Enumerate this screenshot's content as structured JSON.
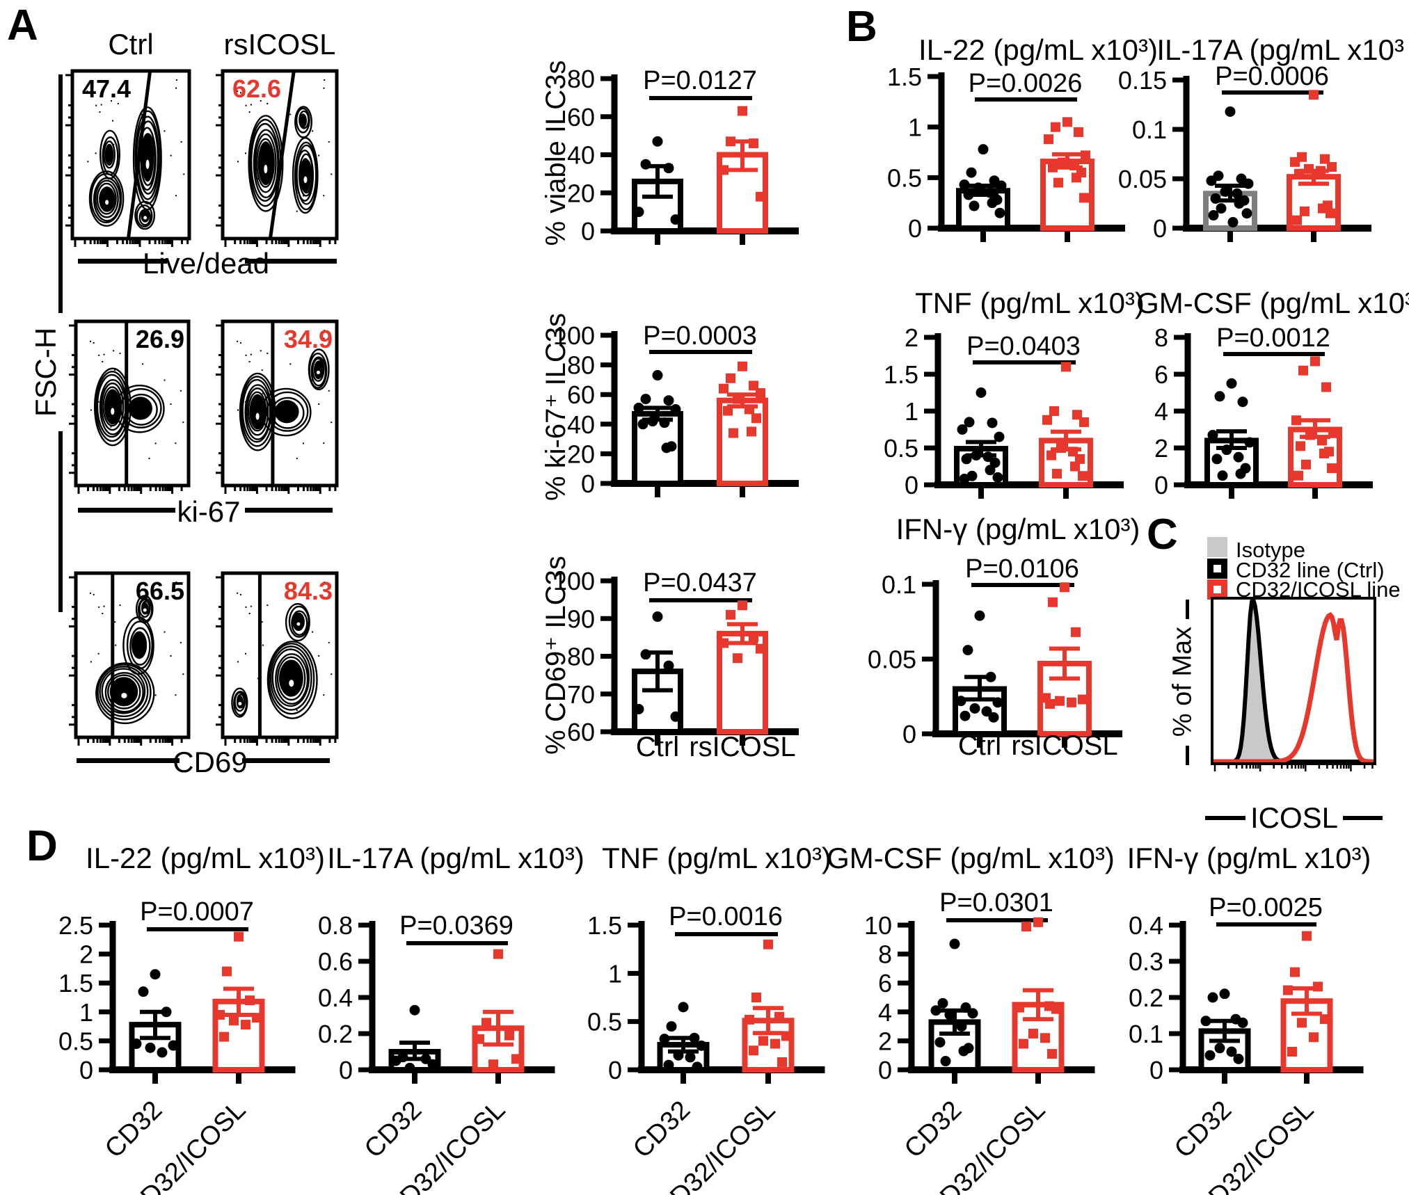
{
  "panels": {
    "a": "A",
    "b": "B",
    "c": "C",
    "d": "D"
  },
  "colors": {
    "accent_red": "#e8372c",
    "gray_bar": "#7f7f7f",
    "isotype_fill": "#c9c9c9",
    "black": "#000000"
  },
  "panel_a": {
    "col_titles": [
      "Ctrl",
      "rsICOSL"
    ],
    "y_axis_label": "FSC-H",
    "rows": [
      {
        "x_axis_label": "Live/dead",
        "ctrl_gate": "47.4",
        "treat_gate": "62.6"
      },
      {
        "x_axis_label": "ki-67",
        "ctrl_gate": "26.9",
        "treat_gate": "34.9"
      },
      {
        "x_axis_label": "CD69",
        "ctrl_gate": "66.5",
        "treat_gate": "84.3"
      }
    ]
  },
  "panel_c": {
    "y_axis_label": "% of Max",
    "x_axis_label": "ICOSL",
    "legend": [
      {
        "label": "Isotype",
        "swatch": "gray-filled"
      },
      {
        "label": "CD32 line (Ctrl)",
        "swatch": "black-open"
      },
      {
        "label": "CD32/ICOSL line",
        "swatch": "red-open"
      }
    ]
  },
  "chart_data": [
    {
      "id": "a1",
      "type": "bar",
      "title": "",
      "ylabel": "% viable ILC3s",
      "p_label": "P=0.0127",
      "ylim": [
        0,
        80
      ],
      "yticks": [
        0,
        20,
        40,
        60,
        80
      ],
      "ytick_labels": [
        "0",
        "20",
        "40",
        "60",
        "80"
      ],
      "categories": [
        "Ctrl",
        "rsICOSL"
      ],
      "show_x_labels": false,
      "rotate_x_labels": false,
      "series": [
        {
          "name": "Ctrl",
          "color": "black",
          "marker": "circle",
          "mean": 26,
          "err": [
            18,
            34
          ],
          "points": [
            47,
            35,
            33,
            10,
            6
          ]
        },
        {
          "name": "rsICOSL",
          "color": "red",
          "marker": "square",
          "mean": 40,
          "err": [
            32,
            47
          ],
          "points": [
            63,
            47,
            46,
            32,
            18
          ]
        }
      ]
    },
    {
      "id": "a2",
      "type": "bar",
      "title": "",
      "ylabel": "% ki-67⁺ ILC3s",
      "p_label": "P=0.0003",
      "ylim": [
        0,
        100
      ],
      "yticks": [
        0,
        20,
        40,
        60,
        80,
        100
      ],
      "ytick_labels": [
        "0",
        "20",
        "40",
        "60",
        "80",
        "100"
      ],
      "categories": [
        "Ctrl",
        "rsICOSL"
      ],
      "show_x_labels": false,
      "rotate_x_labels": false,
      "series": [
        {
          "name": "Ctrl",
          "color": "black",
          "marker": "circle",
          "mean": 47,
          "err": [
            43,
            51
          ],
          "points": [
            73,
            57,
            56,
            51,
            50,
            42,
            41,
            40,
            25,
            24
          ]
        },
        {
          "name": "rsICOSL",
          "color": "red",
          "marker": "square",
          "mean": 56,
          "err": [
            52,
            60
          ],
          "points": [
            79,
            71,
            66,
            64,
            61,
            57,
            50,
            49,
            44,
            35,
            34
          ]
        }
      ]
    },
    {
      "id": "a3",
      "type": "bar",
      "title": "",
      "ylabel": "% CD69⁺ ILC3s",
      "p_label": "P=0.0437",
      "ylim": [
        60,
        100
      ],
      "yticks": [
        60,
        70,
        80,
        90,
        100
      ],
      "ytick_labels": [
        "60",
        "70",
        "80",
        "90",
        "100"
      ],
      "categories": [
        "Ctrl",
        "rsICOSL"
      ],
      "show_x_labels": true,
      "rotate_x_labels": false,
      "series": [
        {
          "name": "Ctrl",
          "color": "black",
          "marker": "circle",
          "mean": 76,
          "err": [
            71,
            81
          ],
          "points": [
            90.5,
            80.5,
            77.5,
            66,
            64
          ]
        },
        {
          "name": "rsICOSL",
          "color": "red",
          "marker": "square",
          "mean": 86,
          "err": [
            83.5,
            88.5
          ],
          "points": [
            93.5,
            91,
            85,
            83.5,
            82,
            79.5
          ]
        }
      ]
    },
    {
      "id": "b1",
      "type": "bar",
      "title": "IL-22 (pg/mL x10³)",
      "ylabel": "",
      "p_label": "P=0.0026",
      "ylim": [
        0,
        1.5
      ],
      "yticks": [
        0,
        0.5,
        1,
        1.5
      ],
      "ytick_labels": [
        "0",
        "0.5",
        "1",
        "1.5"
      ],
      "categories": [
        "Ctrl",
        "rsICOSL"
      ],
      "show_x_labels": false,
      "rotate_x_labels": false,
      "series": [
        {
          "name": "Ctrl",
          "color": "black",
          "marker": "circle",
          "mean": 0.37,
          "err": [
            0.33,
            0.42
          ],
          "points": [
            0.78,
            0.55,
            0.47,
            0.43,
            0.42,
            0.4,
            0.35,
            0.33,
            0.28,
            0.25,
            0.22,
            0.15
          ]
        },
        {
          "name": "rsICOSL",
          "color": "red",
          "marker": "square",
          "mean": 0.66,
          "err": [
            0.6,
            0.73
          ],
          "points": [
            1.05,
            1.0,
            0.95,
            0.88,
            0.72,
            0.65,
            0.62,
            0.6,
            0.55,
            0.5,
            0.45,
            0.3
          ]
        }
      ]
    },
    {
      "id": "b2",
      "type": "bar",
      "title": "IL-17A (pg/mL x10³ )",
      "ylabel": "",
      "p_label": "P=0.0006",
      "ylim": [
        0,
        0.15
      ],
      "yticks": [
        0,
        0.05,
        0.1,
        0.15
      ],
      "ytick_labels": [
        "0",
        "0.05",
        "0.1",
        "0.15"
      ],
      "categories": [
        "Ctrl",
        "rsICOSL"
      ],
      "show_x_labels": false,
      "rotate_x_labels": false,
      "series": [
        {
          "name": "Ctrl",
          "color": "gray",
          "marker": "circle",
          "mean": 0.035,
          "err": [
            0.028,
            0.043
          ],
          "points": [
            0.118,
            0.053,
            0.05,
            0.048,
            0.045,
            0.037,
            0.035,
            0.03,
            0.028,
            0.025,
            0.02,
            0.015,
            0.013,
            0.006
          ]
        },
        {
          "name": "rsICOSL",
          "color": "red",
          "marker": "square",
          "mean": 0.052,
          "err": [
            0.045,
            0.058
          ],
          "points": [
            0.135,
            0.072,
            0.07,
            0.067,
            0.062,
            0.06,
            0.058,
            0.055,
            0.023,
            0.02,
            0.017,
            0.015,
            0.008
          ]
        }
      ]
    },
    {
      "id": "b3",
      "type": "bar",
      "title": "TNF (pg/mL x10³)",
      "ylabel": "",
      "p_label": "P=0.0403",
      "ylim": [
        0,
        2
      ],
      "yticks": [
        0,
        0.5,
        1,
        1.5,
        2
      ],
      "ytick_labels": [
        "0",
        "0.5",
        "1",
        "1.5",
        "2"
      ],
      "categories": [
        "Ctrl",
        "rsICOSL"
      ],
      "show_x_labels": false,
      "rotate_x_labels": false,
      "series": [
        {
          "name": "Ctrl",
          "color": "black",
          "marker": "circle",
          "mean": 0.49,
          "err": [
            0.4,
            0.58
          ],
          "points": [
            1.25,
            0.85,
            0.84,
            0.75,
            0.65,
            0.4,
            0.38,
            0.35,
            0.3,
            0.2,
            0.12,
            0.1,
            0.08
          ]
        },
        {
          "name": "rsICOSL",
          "color": "red",
          "marker": "square",
          "mean": 0.6,
          "err": [
            0.48,
            0.72
          ],
          "points": [
            1.6,
            1.0,
            0.95,
            0.88,
            0.85,
            0.5,
            0.45,
            0.4,
            0.35,
            0.25,
            0.15,
            0.12
          ]
        }
      ]
    },
    {
      "id": "b4",
      "type": "bar",
      "title": "GM-CSF (pg/mL x10³)",
      "ylabel": "",
      "p_label": "P=0.0012",
      "ylim": [
        0,
        8
      ],
      "yticks": [
        0,
        2,
        4,
        6,
        8
      ],
      "ytick_labels": [
        "0",
        "2",
        "4",
        "6",
        "8"
      ],
      "categories": [
        "Ctrl",
        "rsICOSL"
      ],
      "show_x_labels": false,
      "rotate_x_labels": false,
      "series": [
        {
          "name": "Ctrl",
          "color": "black",
          "marker": "circle",
          "mean": 2.4,
          "err": [
            2.0,
            2.9
          ],
          "points": [
            5.5,
            4.8,
            4.5,
            2.7,
            2.3,
            1.9,
            1.5,
            1.4,
            0.9,
            0.6,
            0.5
          ]
        },
        {
          "name": "rsICOSL",
          "color": "red",
          "marker": "square",
          "mean": 3.0,
          "err": [
            2.6,
            3.5
          ],
          "points": [
            6.7,
            6.2,
            5.3,
            3.5,
            2.8,
            2.7,
            2.4,
            2.1,
            1.8,
            1.7,
            1.1,
            0.9,
            0.5
          ]
        }
      ]
    },
    {
      "id": "b5",
      "type": "bar",
      "title": "IFN-γ (pg/mL x10³)",
      "ylabel": "",
      "p_label": "P=0.0106",
      "ylim": [
        0,
        0.1
      ],
      "yticks": [
        0,
        0.05,
        0.1
      ],
      "ytick_labels": [
        "0",
        "0.05",
        "0.1"
      ],
      "categories": [
        "Ctrl",
        "rsICOSL"
      ],
      "show_x_labels": true,
      "rotate_x_labels": false,
      "series": [
        {
          "name": "Ctrl",
          "color": "black",
          "marker": "circle",
          "mean": 0.03,
          "err": [
            0.023,
            0.038
          ],
          "points": [
            0.079,
            0.056,
            0.038,
            0.022,
            0.021,
            0.017,
            0.015,
            0.012,
            0.011
          ]
        },
        {
          "name": "rsICOSL",
          "color": "red",
          "marker": "square",
          "mean": 0.047,
          "err": [
            0.037,
            0.057
          ],
          "points": [
            0.098,
            0.088,
            0.068,
            0.024,
            0.023,
            0.022,
            0.021,
            0.02
          ]
        }
      ]
    },
    {
      "id": "d1",
      "type": "bar",
      "title": "IL-22 (pg/mL x10³)",
      "ylabel": "",
      "p_label": "P=0.0007",
      "ylim": [
        0,
        2.5
      ],
      "yticks": [
        0,
        0.5,
        1,
        1.5,
        2,
        2.5
      ],
      "ytick_labels": [
        "0",
        "0.5",
        "1",
        "1.5",
        "2",
        "2.5"
      ],
      "categories": [
        "CD32",
        "CD32/ICOSL"
      ],
      "show_x_labels": true,
      "rotate_x_labels": true,
      "series": [
        {
          "name": "CD32",
          "color": "black",
          "marker": "circle",
          "mean": 0.78,
          "err": [
            0.55,
            1.0
          ],
          "points": [
            1.65,
            1.35,
            1.0,
            0.45,
            0.42,
            0.38,
            0.3
          ]
        },
        {
          "name": "CD32/ICOSL",
          "color": "red",
          "marker": "square",
          "mean": 1.18,
          "err": [
            0.95,
            1.4
          ],
          "points": [
            2.3,
            1.7,
            1.2,
            0.95,
            0.9,
            0.85,
            0.78,
            0.57
          ]
        }
      ]
    },
    {
      "id": "d2",
      "type": "bar",
      "title": "IL-17A (pg/mL x10³)",
      "ylabel": "",
      "p_label": "P=0.0369",
      "ylim": [
        0,
        0.8
      ],
      "yticks": [
        0,
        0.2,
        0.4,
        0.6,
        0.8
      ],
      "ytick_labels": [
        "0",
        "0.2",
        "0.4",
        "0.6",
        "0.8"
      ],
      "categories": [
        "CD32",
        "CD32/ICOSL"
      ],
      "show_x_labels": true,
      "rotate_x_labels": true,
      "series": [
        {
          "name": "CD32",
          "color": "black",
          "marker": "circle",
          "mean": 0.1,
          "err": [
            0.06,
            0.15
          ],
          "points": [
            0.33,
            0.07,
            0.06,
            0.05,
            0.03,
            0.01
          ]
        },
        {
          "name": "CD32/ICOSL",
          "color": "red",
          "marker": "square",
          "mean": 0.23,
          "err": [
            0.14,
            0.32
          ],
          "points": [
            0.64,
            0.26,
            0.19,
            0.17,
            0.06,
            0.03
          ]
        }
      ]
    },
    {
      "id": "d3",
      "type": "bar",
      "title": "TNF (pg/mL x10³)",
      "ylabel": "",
      "p_label": "P=0.0016",
      "ylim": [
        0,
        1.5
      ],
      "yticks": [
        0,
        0.5,
        1,
        1.5
      ],
      "ytick_labels": [
        "0",
        "0.5",
        "1",
        "1.5"
      ],
      "categories": [
        "CD32",
        "CD32/ICOSL"
      ],
      "show_x_labels": true,
      "rotate_x_labels": true,
      "series": [
        {
          "name": "CD32",
          "color": "black",
          "marker": "circle",
          "mean": 0.26,
          "err": [
            0.19,
            0.33
          ],
          "points": [
            0.65,
            0.45,
            0.33,
            0.32,
            0.25,
            0.15,
            0.13,
            0.05,
            0.03
          ]
        },
        {
          "name": "CD32/ICOSL",
          "color": "red",
          "marker": "square",
          "mean": 0.51,
          "err": [
            0.38,
            0.64
          ],
          "points": [
            1.3,
            0.75,
            0.55,
            0.52,
            0.35,
            0.3,
            0.27,
            0.2,
            0.08
          ]
        }
      ]
    },
    {
      "id": "d4",
      "type": "bar",
      "title": "GM-CSF (pg/mL x10³)",
      "ylabel": "",
      "p_label": "P=0.0301",
      "ylim": [
        0,
        10
      ],
      "yticks": [
        0,
        2,
        4,
        6,
        8,
        10
      ],
      "ytick_labels": [
        "0",
        "2",
        "4",
        "6",
        "8",
        "10"
      ],
      "categories": [
        "CD32",
        "CD32/ICOSL"
      ],
      "show_x_labels": true,
      "rotate_x_labels": true,
      "series": [
        {
          "name": "CD32",
          "color": "black",
          "marker": "circle",
          "mean": 3.3,
          "err": [
            2.5,
            4.1
          ],
          "points": [
            8.7,
            4.6,
            4.3,
            4.1,
            3.9,
            3.8,
            3.0,
            1.9,
            1.5,
            1.3,
            0.6
          ]
        },
        {
          "name": "CD32/ICOSL",
          "color": "red",
          "marker": "square",
          "mean": 4.5,
          "err": [
            3.5,
            5.5
          ],
          "points": [
            10.2,
            9.9,
            4.4,
            4.3,
            4.2,
            2.5,
            2.2,
            1.8,
            1.1
          ]
        }
      ]
    },
    {
      "id": "d5",
      "type": "bar",
      "title": "IFN-γ (pg/mL x10³)",
      "ylabel": "",
      "p_label": "P=0.0025",
      "ylim": [
        0,
        0.4
      ],
      "yticks": [
        0,
        0.1,
        0.2,
        0.3,
        0.4
      ],
      "ytick_labels": [
        "0",
        "0.1",
        "0.2",
        "0.3",
        "0.4"
      ],
      "categories": [
        "CD32",
        "CD32/ICOSL"
      ],
      "show_x_labels": true,
      "rotate_x_labels": true,
      "series": [
        {
          "name": "CD32",
          "color": "black",
          "marker": "circle",
          "mean": 0.107,
          "err": [
            0.08,
            0.135
          ],
          "points": [
            0.21,
            0.2,
            0.14,
            0.135,
            0.13,
            0.06,
            0.05,
            0.04,
            0.03
          ]
        },
        {
          "name": "CD32/ICOSL",
          "color": "red",
          "marker": "square",
          "mean": 0.19,
          "err": [
            0.155,
            0.225
          ],
          "points": [
            0.37,
            0.27,
            0.23,
            0.22,
            0.14,
            0.13,
            0.09,
            0.05
          ]
        }
      ]
    },
    {
      "id": "c_hist",
      "type": "histogram",
      "x_axis_label": "ICOSL",
      "y_axis_label": "% of Max",
      "series": [
        {
          "name": "Isotype",
          "style": "gray-filled",
          "peak_x": 0.245,
          "peak_height": 1.0
        },
        {
          "name": "CD32 line (Ctrl)",
          "style": "black-line",
          "peak_x": 0.245,
          "peak_height": 1.0
        },
        {
          "name": "CD32/ICOSL line",
          "style": "red-line",
          "peak_x": 0.76,
          "peak_height": 0.95
        }
      ]
    }
  ],
  "flow_plots": [
    {
      "row": 0,
      "col": 0,
      "gate": "47.4",
      "gate_color": "black"
    },
    {
      "row": 0,
      "col": 1,
      "gate": "62.6",
      "gate_color": "red"
    },
    {
      "row": 1,
      "col": 0,
      "gate": "26.9",
      "gate_color": "black"
    },
    {
      "row": 1,
      "col": 1,
      "gate": "34.9",
      "gate_color": "red"
    },
    {
      "row": 2,
      "col": 0,
      "gate": "66.5",
      "gate_color": "black"
    },
    {
      "row": 2,
      "col": 1,
      "gate": "84.3",
      "gate_color": "red"
    }
  ]
}
